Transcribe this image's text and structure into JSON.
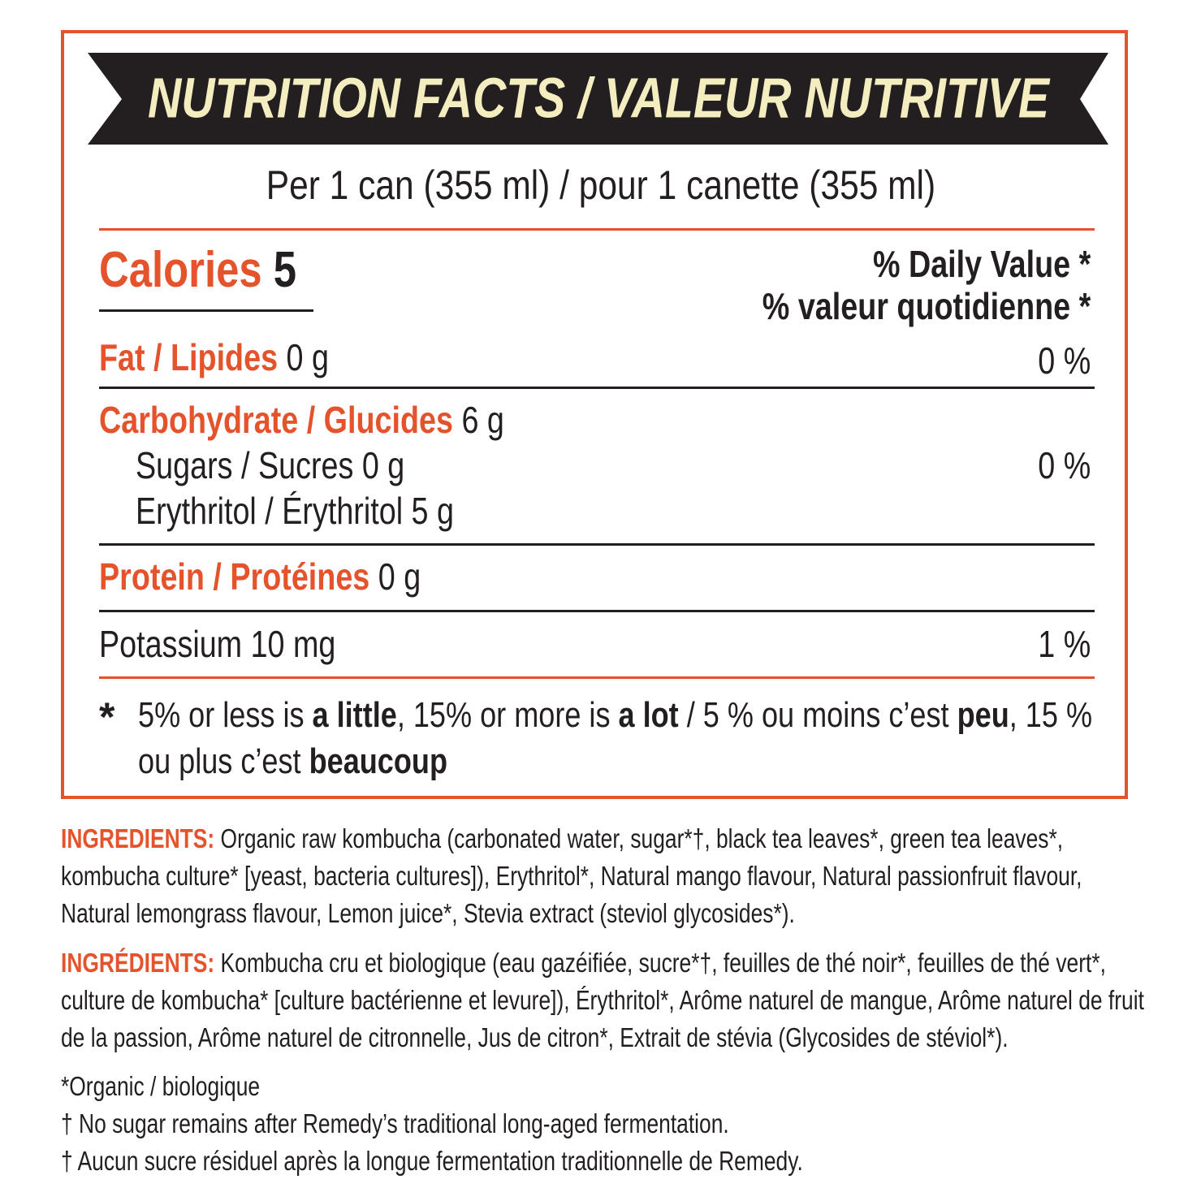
{
  "header": {
    "title": "NUTRITION FACTS / VALEUR NUTRITIVE",
    "serving": "Per 1 can (355 ml)  / pour 1 canette (355 ml)"
  },
  "calories": {
    "label": "Calories",
    "value": "5"
  },
  "daily_value_heading": [
    "% Daily Value *",
    "% valeur quotidienne *"
  ],
  "fat": {
    "label": "Fat / Lipides",
    "amount": "0 g",
    "dv": "0 %"
  },
  "carbohydrate": {
    "label": "Carbohydrate / Glucides",
    "amount": "6 g",
    "sugars": {
      "label": "Sugars / Sucres 0 g",
      "dv": "0 %"
    },
    "erythritol": {
      "label": "Erythritol / Érythritol 5 g"
    }
  },
  "protein": {
    "label": "Protein / Protéines",
    "amount": "0 g"
  },
  "potassium": {
    "label": "Potassium 10 mg",
    "dv": "1 %"
  },
  "footnote": {
    "symbol": "*",
    "parts": [
      {
        "text": "5% or less is ",
        "bold": false
      },
      {
        "text": "a little",
        "bold": true
      },
      {
        "text": ", 15% or more is ",
        "bold": false
      },
      {
        "text": "a lot",
        "bold": true
      },
      {
        "text": " / 5 % ou moins c’est ",
        "bold": false
      },
      {
        "text": "peu",
        "bold": true
      },
      {
        "text": ", 15 % ou plus c’est ",
        "bold": false
      },
      {
        "text": "beaucoup",
        "bold": true
      }
    ]
  },
  "ingredients_en": {
    "label": "INGREDIENTS:",
    "text": "Organic raw kombucha (carbonated water, sugar*†, black tea leaves*, green tea leaves*, kombucha culture* [yeast, bacteria cultures]), Erythritol*, Natural mango flavour, Natural passionfruit flavour, Natural lemongrass flavour, Lemon juice*, Stevia extract (steviol glycosides*)."
  },
  "ingredients_fr": {
    "label": "INGRÉDIENTS:",
    "text": "Kombucha cru et biologique (eau gazéifiée, sucre*†, feuilles de thé noir*, feuilles de thé vert*, culture de kombucha* [culture bactérienne et levure]), Érythritol*, Arôme naturel de mangue, Arôme naturel de fruit de la passion, Arôme naturel de citronnelle, Jus de citron*, Extrait de stévia (Glycosides de stéviol*)."
  },
  "notes": [
    "*Organic / biologique",
    "† No sugar remains after Remedy’s traditional long-aged fermentation.",
    "† Aucun sucre résiduel après la longue fermentation traditionnelle de Remedy."
  ]
}
